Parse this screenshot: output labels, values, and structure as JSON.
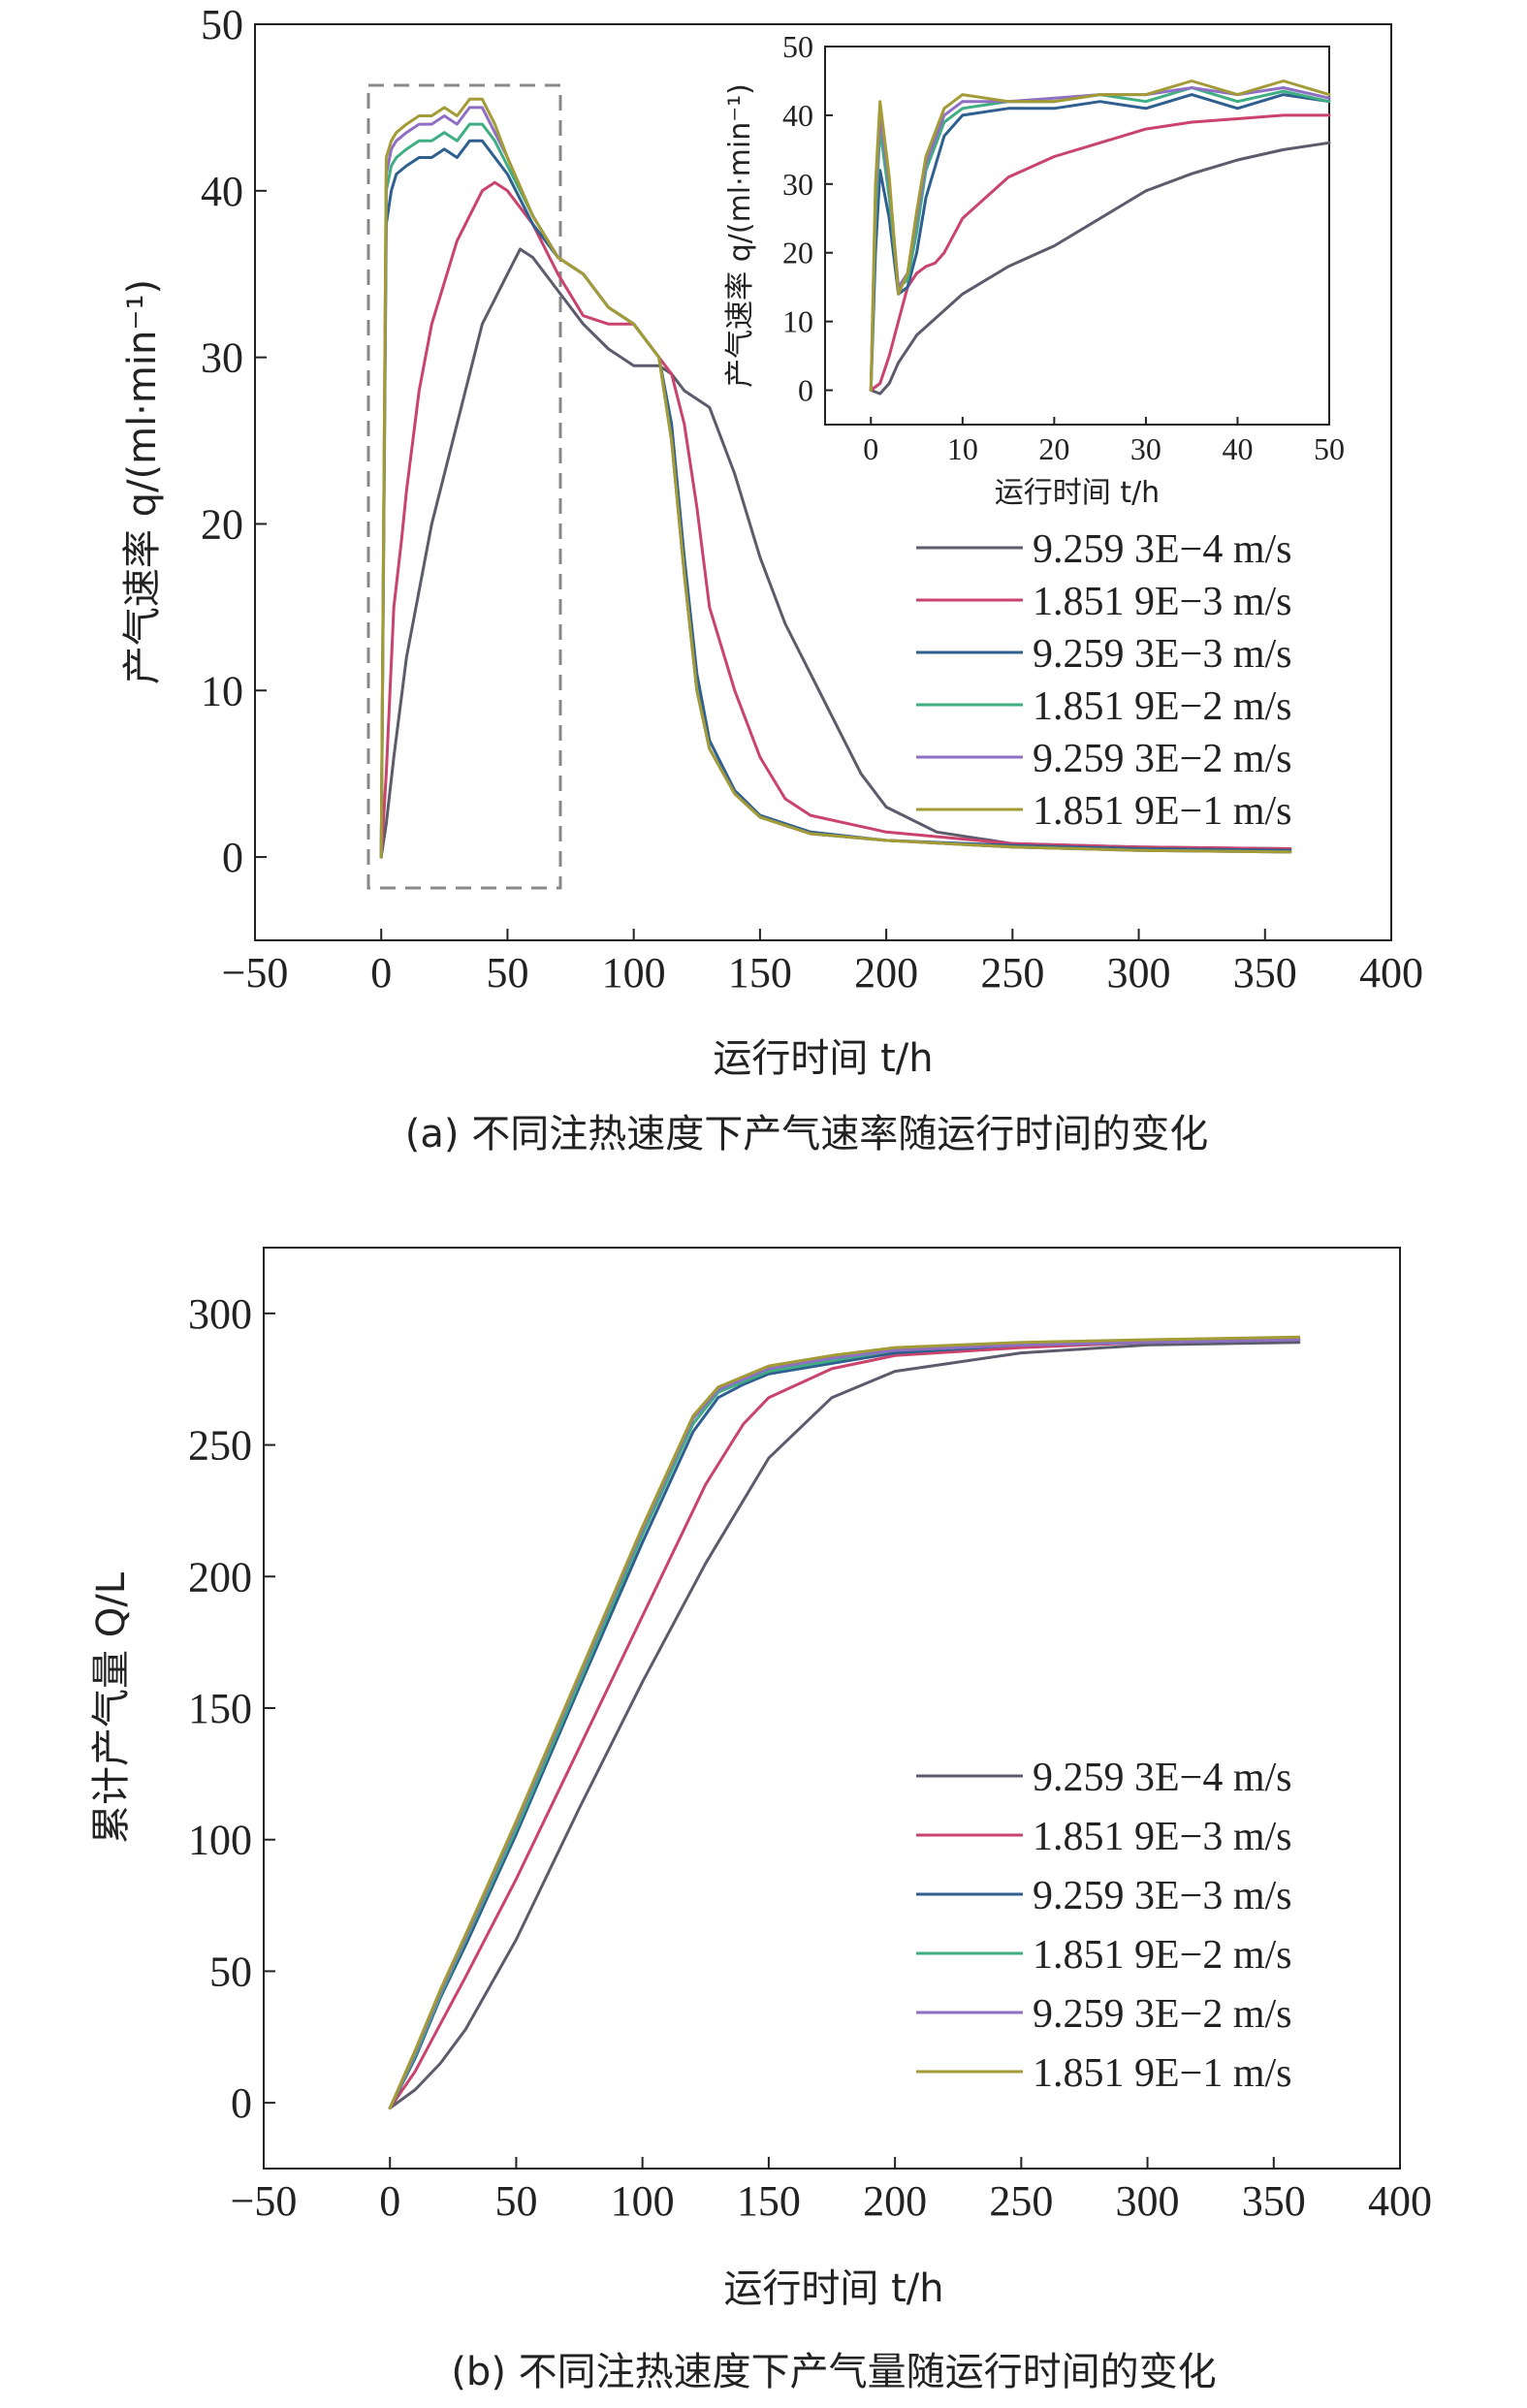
{
  "colors": [
    "#5b5b6b",
    "#c9436c",
    "#2e5f8f",
    "#3fae83",
    "#8e6fc4",
    "#a39b35"
  ],
  "legend_labels": [
    "9.259 3E−4 m/s",
    "1.851 9E−3 m/s",
    "9.259 3E−3 m/s",
    "1.851 9E−2 m/s",
    "9.259 3E−2 m/s",
    "1.851 9E−1 m/s"
  ],
  "chart_data": [
    {
      "id": "a",
      "type": "line",
      "caption": "(a) 不同注热速度下产气速率随运行时间的变化",
      "xlabel": "运行时间 t/h",
      "ylabel": "产气速率 q/(ml·min⁻¹)",
      "xlim": [
        -50,
        400
      ],
      "ylim": [
        -5,
        50
      ],
      "xticks": [
        "−50",
        "0",
        "50",
        "100",
        "150",
        "200",
        "250",
        "300",
        "350",
        "400"
      ],
      "yticks": [
        "0",
        "10",
        "20",
        "30",
        "40",
        "50"
      ],
      "legend_position": "right-middle",
      "series": [
        {
          "name": "9.259 3E−4 m/s",
          "x": [
            0,
            2,
            5,
            10,
            15,
            20,
            30,
            40,
            50,
            55,
            60,
            70,
            80,
            90,
            100,
            110,
            115,
            120,
            130,
            140,
            150,
            160,
            170,
            180,
            190,
            200,
            220,
            250,
            300,
            360
          ],
          "y": [
            0,
            2,
            6,
            12,
            16,
            20,
            26,
            32,
            35,
            36.5,
            36,
            34,
            32,
            30.5,
            29.5,
            29.5,
            29,
            28,
            27,
            23,
            18,
            14,
            11,
            8,
            5,
            3,
            1.5,
            0.8,
            0.6,
            0.5
          ]
        },
        {
          "name": "1.851 9E−3 m/s",
          "x": [
            0,
            2,
            5,
            8,
            10,
            15,
            20,
            30,
            40,
            45,
            50,
            60,
            70,
            80,
            90,
            100,
            110,
            115,
            120,
            125,
            130,
            140,
            150,
            160,
            170,
            200,
            250,
            300,
            360
          ],
          "y": [
            0,
            5,
            15,
            19,
            22,
            28,
            32,
            37,
            40,
            40.5,
            40,
            38,
            35,
            32.5,
            32,
            32,
            30,
            29,
            26,
            21,
            15,
            10,
            6,
            3.5,
            2.5,
            1.5,
            0.8,
            0.6,
            0.5
          ]
        },
        {
          "name": "9.259 3E−3 m/s",
          "x": [
            0,
            2,
            4,
            6,
            10,
            15,
            20,
            25,
            30,
            35,
            40,
            45,
            50,
            60,
            70,
            80,
            90,
            100,
            110,
            115,
            120,
            125,
            130,
            140,
            150,
            170,
            200,
            250,
            300,
            360
          ],
          "y": [
            0,
            38,
            40,
            41,
            41.5,
            42,
            42,
            42.5,
            42,
            43,
            43,
            42,
            41,
            38,
            36,
            35,
            33,
            32,
            30,
            26,
            18,
            11,
            7,
            4,
            2.5,
            1.5,
            1,
            0.7,
            0.5,
            0.4
          ]
        },
        {
          "name": "1.851 9E−2 m/s",
          "x": [
            0,
            2,
            4,
            6,
            10,
            15,
            20,
            25,
            30,
            35,
            40,
            45,
            50,
            60,
            70,
            80,
            90,
            100,
            110,
            115,
            120,
            125,
            130,
            140,
            150,
            170,
            200,
            250,
            300,
            360
          ],
          "y": [
            0,
            40,
            41.5,
            42,
            42.5,
            43,
            43,
            43.5,
            43,
            44,
            44,
            43,
            41.5,
            38.5,
            36,
            35,
            33,
            32,
            30,
            25,
            17,
            10,
            6.5,
            3.8,
            2.4,
            1.4,
            1,
            0.6,
            0.4,
            0.3
          ]
        },
        {
          "name": "9.259 3E−2 m/s",
          "x": [
            0,
            2,
            4,
            6,
            10,
            15,
            20,
            25,
            30,
            35,
            40,
            45,
            50,
            60,
            70,
            80,
            90,
            100,
            110,
            115,
            120,
            125,
            130,
            140,
            150,
            170,
            200,
            250,
            300,
            360
          ],
          "y": [
            0,
            41,
            42.5,
            43,
            43.5,
            44,
            44,
            44.5,
            44,
            45,
            45,
            43.5,
            42,
            38.5,
            36,
            35,
            33,
            32,
            30,
            25,
            17,
            10,
            6.5,
            3.8,
            2.4,
            1.4,
            1,
            0.6,
            0.4,
            0.3
          ]
        },
        {
          "name": "1.851 9E−1 m/s",
          "x": [
            0,
            2,
            4,
            6,
            10,
            15,
            20,
            25,
            30,
            35,
            40,
            45,
            50,
            60,
            70,
            80,
            90,
            100,
            110,
            115,
            120,
            125,
            130,
            140,
            150,
            170,
            200,
            250,
            300,
            360
          ],
          "y": [
            0,
            42,
            43,
            43.5,
            44,
            44.5,
            44.5,
            45,
            44.5,
            45.5,
            45.5,
            44,
            42,
            38.5,
            36,
            35,
            33,
            32,
            30,
            25,
            17,
            10,
            6.5,
            3.8,
            2.4,
            1.4,
            1,
            0.6,
            0.4,
            0.3
          ]
        }
      ]
    },
    {
      "id": "a-inset",
      "type": "line",
      "xlabel": "运行时间 t/h",
      "ylabel": "产气速率 q/(ml·min⁻¹)",
      "xlim": [
        -5,
        50
      ],
      "ylim": [
        -5,
        50
      ],
      "xticks": [
        "0",
        "10",
        "20",
        "30",
        "40",
        "50"
      ],
      "yticks": [
        "0",
        "10",
        "20",
        "30",
        "40",
        "50"
      ],
      "series": [
        {
          "name": "9.259 3E−4 m/s",
          "x": [
            0,
            1,
            2,
            3,
            5,
            10,
            15,
            20,
            25,
            30,
            35,
            40,
            45,
            50
          ],
          "y": [
            0,
            -0.5,
            1,
            4,
            8,
            14,
            18,
            21,
            25,
            29,
            31.5,
            33.5,
            35,
            36
          ]
        },
        {
          "name": "1.851 9E−3 m/s",
          "x": [
            0,
            1,
            2,
            3,
            4,
            5,
            6,
            7,
            8,
            10,
            15,
            20,
            25,
            30,
            35,
            40,
            45,
            50
          ],
          "y": [
            0,
            1,
            5,
            10,
            15,
            17,
            18,
            18.5,
            20,
            25,
            31,
            34,
            36,
            38,
            39,
            39.5,
            40,
            40
          ]
        },
        {
          "name": "9.259 3E−3 m/s",
          "x": [
            0,
            0.5,
            1,
            2,
            3,
            4,
            5,
            6,
            8,
            10,
            15,
            20,
            25,
            30,
            35,
            40,
            45,
            50
          ],
          "y": [
            0,
            20,
            32,
            25,
            14,
            15,
            20,
            28,
            37,
            40,
            41,
            41,
            42,
            41,
            43,
            41,
            43,
            42
          ]
        },
        {
          "name": "1.851 9E−2 m/s",
          "x": [
            0,
            0.5,
            1,
            2,
            3,
            4,
            5,
            6,
            8,
            10,
            15,
            20,
            25,
            30,
            35,
            40,
            45,
            50
          ],
          "y": [
            0,
            25,
            38,
            28,
            15,
            16,
            23,
            32,
            39,
            41,
            42,
            42,
            43,
            42,
            44,
            42,
            43.5,
            42
          ]
        },
        {
          "name": "9.259 3E−2 m/s",
          "x": [
            0,
            0.5,
            1,
            2,
            3,
            4,
            5,
            6,
            8,
            10,
            15,
            20,
            25,
            30,
            35,
            40,
            45,
            50
          ],
          "y": [
            0,
            28,
            40,
            30,
            15,
            17,
            25,
            33,
            40,
            42,
            42,
            42.5,
            43,
            43,
            44,
            43,
            44,
            42.5
          ]
        },
        {
          "name": "1.851 9E−1 m/s",
          "x": [
            0,
            0.5,
            1,
            2,
            3,
            4,
            5,
            6,
            8,
            10,
            15,
            20,
            25,
            30,
            35,
            40,
            45,
            50
          ],
          "y": [
            0,
            30,
            42,
            31,
            14,
            17,
            26,
            34,
            41,
            43,
            42,
            42,
            43,
            43,
            45,
            43,
            45,
            43
          ]
        }
      ]
    },
    {
      "id": "b",
      "type": "line",
      "caption": "(b) 不同注热速度下产气量随运行时间的变化",
      "xlabel": "运行时间 t/h",
      "ylabel": "累计产气量 Q/L",
      "xlim": [
        -50,
        400
      ],
      "ylim": [
        -25,
        325
      ],
      "xticks": [
        "−50",
        "0",
        "50",
        "100",
        "150",
        "200",
        "250",
        "300",
        "350",
        "400"
      ],
      "yticks": [
        "0",
        "50",
        "100",
        "150",
        "200",
        "250",
        "300"
      ],
      "legend_position": "right-middle",
      "series": [
        {
          "name": "9.259 3E−4 m/s",
          "x": [
            0,
            10,
            20,
            30,
            50,
            75,
            100,
            125,
            150,
            175,
            200,
            250,
            300,
            360
          ],
          "y": [
            -2,
            5,
            15,
            28,
            62,
            112,
            160,
            205,
            245,
            268,
            278,
            285,
            288,
            289
          ]
        },
        {
          "name": "1.851 9E−3 m/s",
          "x": [
            0,
            10,
            20,
            30,
            50,
            75,
            100,
            125,
            140,
            150,
            175,
            200,
            250,
            300,
            360
          ],
          "y": [
            -2,
            12,
            30,
            48,
            85,
            135,
            185,
            235,
            258,
            268,
            279,
            284,
            287,
            289,
            290
          ]
        },
        {
          "name": "9.259 3E−3 m/s",
          "x": [
            0,
            10,
            20,
            30,
            50,
            75,
            100,
            120,
            130,
            140,
            150,
            175,
            200,
            250,
            300,
            360
          ],
          "y": [
            -2,
            17,
            40,
            60,
            102,
            158,
            213,
            255,
            268,
            273,
            277,
            281,
            285,
            288,
            289,
            290
          ]
        },
        {
          "name": "1.851 9E−2 m/s",
          "x": [
            0,
            10,
            20,
            30,
            50,
            75,
            100,
            120,
            130,
            140,
            150,
            175,
            200,
            250,
            300,
            360
          ],
          "y": [
            -2,
            18,
            41,
            62,
            104,
            160,
            216,
            258,
            270,
            274,
            278,
            282,
            286,
            288,
            289,
            290
          ]
        },
        {
          "name": "9.259 3E−2 m/s",
          "x": [
            0,
            10,
            20,
            30,
            50,
            75,
            100,
            120,
            130,
            140,
            150,
            175,
            200,
            250,
            300,
            360
          ],
          "y": [
            -2,
            19,
            42,
            63,
            106,
            162,
            218,
            260,
            271,
            275,
            279,
            283,
            286,
            288,
            289,
            290
          ]
        },
        {
          "name": "1.851 9E−1 m/s",
          "x": [
            0,
            10,
            20,
            30,
            50,
            75,
            100,
            120,
            130,
            140,
            150,
            175,
            200,
            250,
            300,
            360
          ],
          "y": [
            -2,
            20,
            43,
            64,
            107,
            163,
            219,
            261,
            272,
            276,
            280,
            284,
            287,
            289,
            290,
            291
          ]
        }
      ]
    }
  ]
}
